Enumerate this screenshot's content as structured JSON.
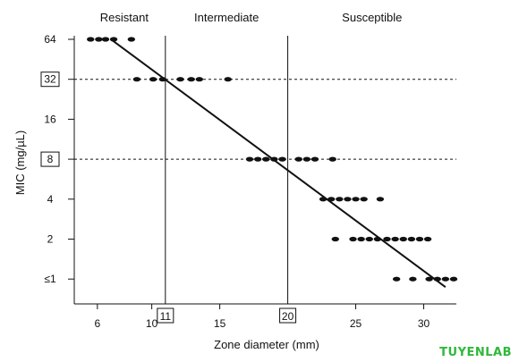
{
  "chart_data": {
    "type": "scatter",
    "title": "",
    "xlabel": "Zone diameter (mm)",
    "ylabel": "MIC (mg/µL)",
    "xlim": [
      4.3,
      32.4
    ],
    "x_ticks": [
      6,
      10,
      15,
      25,
      30
    ],
    "y_categories": [
      "≤1",
      "2",
      "4",
      "8",
      "16",
      "32",
      "64"
    ],
    "zones": [
      "Resistant",
      "Intermediate",
      "Susceptible"
    ],
    "breakpoints": {
      "zone_diameter": [
        "11",
        "20"
      ],
      "mic": [
        "32",
        "8"
      ]
    },
    "regression_line": {
      "x": [
        7,
        31.6
      ],
      "y_level": [
        6,
        -0.2
      ]
    },
    "points": [
      {
        "x": 5.5,
        "y": "64"
      },
      {
        "x": 6.1,
        "y": "64"
      },
      {
        "x": 6.6,
        "y": "64"
      },
      {
        "x": 7.2,
        "y": "64"
      },
      {
        "x": 8.5,
        "y": "64"
      },
      {
        "x": 8.9,
        "y": "32"
      },
      {
        "x": 10.1,
        "y": "32"
      },
      {
        "x": 10.8,
        "y": "32"
      },
      {
        "x": 12.1,
        "y": "32"
      },
      {
        "x": 12.9,
        "y": "32"
      },
      {
        "x": 13.5,
        "y": "32"
      },
      {
        "x": 15.6,
        "y": "32"
      },
      {
        "x": 17.2,
        "y": "8"
      },
      {
        "x": 17.8,
        "y": "8"
      },
      {
        "x": 18.4,
        "y": "8"
      },
      {
        "x": 19.0,
        "y": "8"
      },
      {
        "x": 19.6,
        "y": "8"
      },
      {
        "x": 20.8,
        "y": "8"
      },
      {
        "x": 21.4,
        "y": "8"
      },
      {
        "x": 22.0,
        "y": "8"
      },
      {
        "x": 23.3,
        "y": "8"
      },
      {
        "x": 22.6,
        "y": "4"
      },
      {
        "x": 23.2,
        "y": "4"
      },
      {
        "x": 23.8,
        "y": "4"
      },
      {
        "x": 24.4,
        "y": "4"
      },
      {
        "x": 25.0,
        "y": "4"
      },
      {
        "x": 25.6,
        "y": "4"
      },
      {
        "x": 26.8,
        "y": "4"
      },
      {
        "x": 23.5,
        "y": "2"
      },
      {
        "x": 24.8,
        "y": "2"
      },
      {
        "x": 25.4,
        "y": "2"
      },
      {
        "x": 26.0,
        "y": "2"
      },
      {
        "x": 26.6,
        "y": "2"
      },
      {
        "x": 27.3,
        "y": "2"
      },
      {
        "x": 27.9,
        "y": "2"
      },
      {
        "x": 28.5,
        "y": "2"
      },
      {
        "x": 29.1,
        "y": "2"
      },
      {
        "x": 29.7,
        "y": "2"
      },
      {
        "x": 30.3,
        "y": "2"
      },
      {
        "x": 28.0,
        "y": "≤1"
      },
      {
        "x": 29.2,
        "y": "≤1"
      },
      {
        "x": 30.4,
        "y": "≤1"
      },
      {
        "x": 31.0,
        "y": "≤1"
      },
      {
        "x": 31.6,
        "y": "≤1"
      },
      {
        "x": 32.2,
        "y": "≤1"
      }
    ]
  },
  "watermark": "TUYENLAB"
}
